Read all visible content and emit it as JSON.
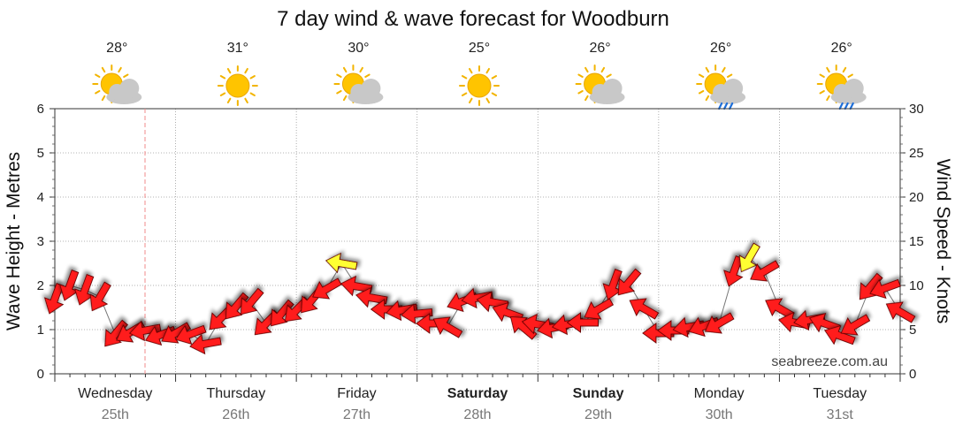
{
  "chart_data": {
    "type": "line",
    "title": "7 day wind & wave forecast for Woodburn",
    "ylabel_left": "Wave Height - Metres",
    "ylabel_right": "Wind Speed - Knots",
    "ylim_left": [
      0,
      6
    ],
    "ylim_right": [
      0,
      30
    ],
    "yticks_left": [
      "0",
      "1",
      "2",
      "3",
      "4",
      "5",
      "6"
    ],
    "yticks_right": [
      "0",
      "5",
      "10",
      "15",
      "20",
      "25",
      "30"
    ],
    "grid": true,
    "days": [
      {
        "day": "Wednesday",
        "date": "25th",
        "temp": "28°",
        "weather": "partly-cloudy",
        "bold": false
      },
      {
        "day": "Thursday",
        "date": "26th",
        "temp": "31°",
        "weather": "sunny",
        "bold": false
      },
      {
        "day": "Friday",
        "date": "27th",
        "temp": "30°",
        "weather": "partly-cloudy",
        "bold": false
      },
      {
        "day": "Saturday",
        "date": "28th",
        "temp": "25°",
        "weather": "sunny",
        "bold": true
      },
      {
        "day": "Sunday",
        "date": "29th",
        "temp": "26°",
        "weather": "partly-cloudy",
        "bold": true
      },
      {
        "day": "Monday",
        "date": "30th",
        "temp": "26°",
        "weather": "showers",
        "bold": false
      },
      {
        "day": "Tuesday",
        "date": "31st",
        "temp": "26°",
        "weather": "showers",
        "bold": false
      }
    ],
    "series": [
      {
        "name": "wind",
        "x_hours": [
          0,
          3,
          6,
          9,
          12,
          15,
          18,
          21,
          24,
          27,
          30,
          33,
          36,
          39,
          42,
          45,
          48,
          51,
          54,
          57,
          60,
          63,
          66,
          69,
          72,
          75,
          78,
          81,
          84,
          87,
          90,
          93,
          96,
          99,
          102,
          105,
          108,
          111,
          114,
          117,
          120,
          123,
          126,
          129,
          132,
          135,
          138,
          141,
          144,
          147,
          150,
          153,
          156,
          159,
          162,
          165,
          168
        ],
        "speed_kn": [
          8.5,
          10,
          9.5,
          8.7,
          4.5,
          4.7,
          4.9,
          4.4,
          4.6,
          4.5,
          3.4,
          6.3,
          7.6,
          8.1,
          5.7,
          6.8,
          7.2,
          8.3,
          9.6,
          12.5,
          9.9,
          8.6,
          7.3,
          7.2,
          6.8,
          5.7,
          5.3,
          8.2,
          8.6,
          8.1,
          6.9,
          5.3,
          5.6,
          5.2,
          5.6,
          5.8,
          7.3,
          10.1,
          10.3,
          7.4,
          4.6,
          4.9,
          5.3,
          5.4,
          5.7,
          11.6,
          13.1,
          11.6,
          7.4,
          5.8,
          6.1,
          5.7,
          4.3,
          5.5,
          9.8,
          9.7,
          7.0
        ],
        "direction_deg": [
          20,
          20,
          20,
          30,
          40,
          60,
          80,
          70,
          60,
          70,
          80,
          45,
          40,
          40,
          45,
          40,
          45,
          40,
          60,
          100,
          100,
          100,
          90,
          80,
          85,
          90,
          120,
          70,
          80,
          100,
          110,
          130,
          100,
          80,
          80,
          90,
          60,
          20,
          40,
          120,
          90,
          90,
          80,
          70,
          60,
          20,
          30,
          60,
          120,
          100,
          80,
          110,
          110,
          60,
          40,
          70,
          120
        ],
        "exceeds_threshold": [
          false,
          false,
          false,
          false,
          false,
          false,
          false,
          false,
          false,
          false,
          false,
          false,
          false,
          false,
          false,
          false,
          false,
          false,
          false,
          true,
          false,
          false,
          false,
          false,
          false,
          false,
          false,
          false,
          false,
          false,
          false,
          false,
          false,
          false,
          false,
          false,
          false,
          false,
          false,
          false,
          false,
          false,
          false,
          false,
          false,
          false,
          true,
          false,
          false,
          false,
          false,
          false,
          false,
          false,
          false,
          false,
          false
        ]
      }
    ],
    "marker_colors": {
      "normal": "#ff1a1a",
      "high": "#ffff33",
      "outline": "#660000"
    },
    "current_time_marker": "dashed vertical line (red)"
  },
  "watermark": "seabreeze.com.au"
}
